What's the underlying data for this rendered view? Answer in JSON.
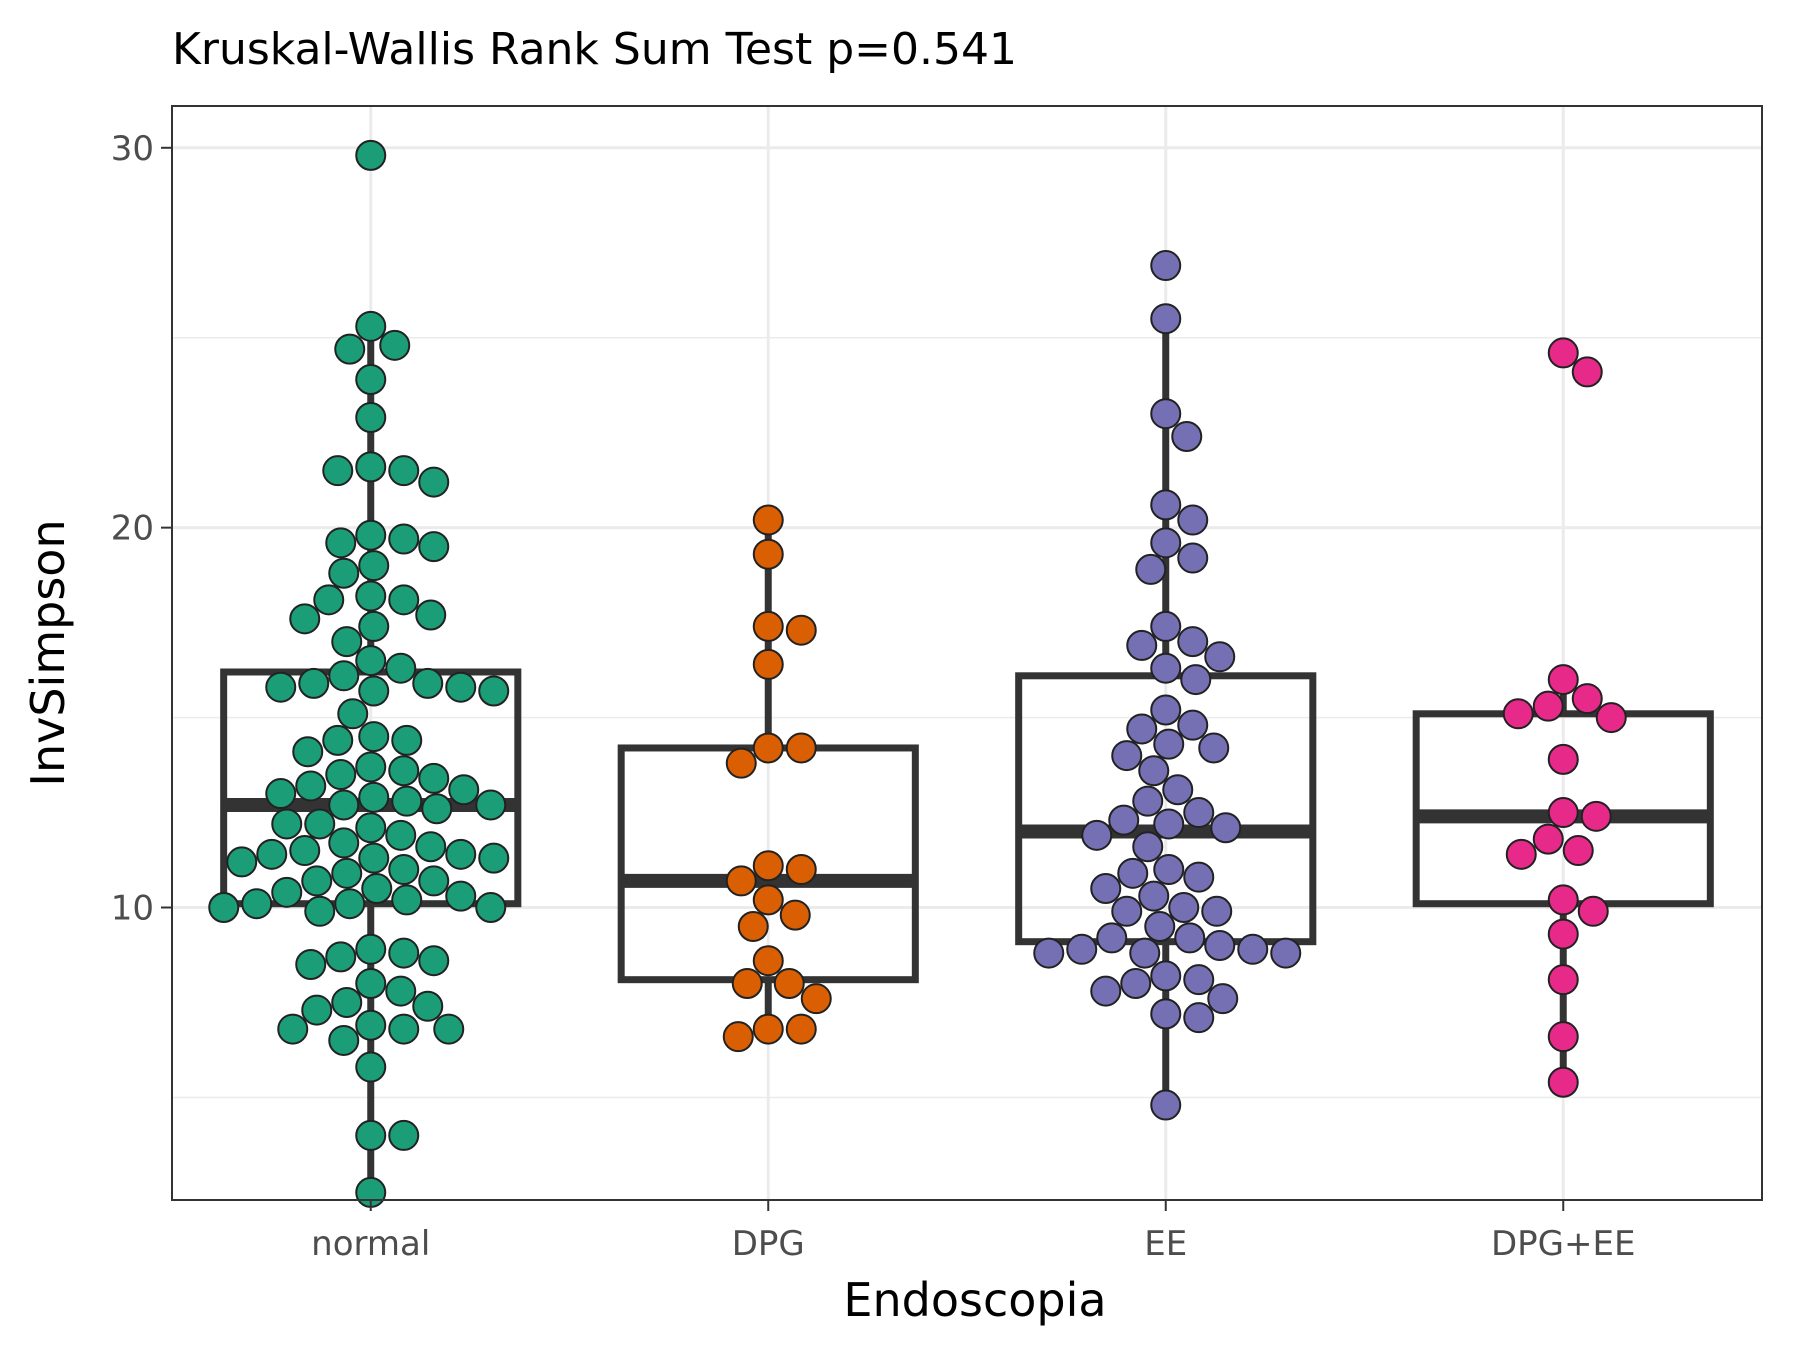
{
  "chart_data": {
    "type": "box",
    "title": "Kruskal-Wallis Rank Sum Test p=0.541",
    "xlabel": "Endoscopia",
    "ylabel": "InvSimpson",
    "categories": [
      "normal",
      "DPG",
      "EE",
      "DPG+EE"
    ],
    "ylim": [
      2.3,
      31.1
    ],
    "yticks": [
      10,
      20,
      30
    ],
    "grid": true,
    "legend": "none",
    "colors": {
      "normal": "#1b9e77",
      "DPG": "#d95f02",
      "EE": "#7570b3",
      "DPG+EE": "#e7298a",
      "box": "#333333"
    },
    "boxes": [
      {
        "group": "normal",
        "q1": 10.1,
        "median": 12.7,
        "q3": 16.2,
        "lower_whisker": 2.5,
        "upper_whisker": 25.3
      },
      {
        "group": "DPG",
        "q1": 8.1,
        "median": 10.7,
        "q3": 14.2,
        "lower_whisker": 6.6,
        "upper_whisker": 20.2
      },
      {
        "group": "EE",
        "q1": 9.1,
        "median": 12.0,
        "q3": 16.1,
        "lower_whisker": 4.8,
        "upper_whisker": 25.5
      },
      {
        "group": "DPG+EE",
        "q1": 10.1,
        "median": 12.4,
        "q3": 15.1,
        "lower_whisker": 5.4,
        "upper_whisker": 16.0
      }
    ],
    "points": [
      {
        "group": "normal",
        "values": [
          29.8,
          25.3,
          24.8,
          24.7,
          23.9,
          22.9,
          21.6,
          21.5,
          21.2,
          21.5,
          19.8,
          19.6,
          19.7,
          19.5,
          19.0,
          18.8,
          18.2,
          18.1,
          18.1,
          17.7,
          17.6,
          17.4,
          17.0,
          16.5,
          16.3,
          16.1,
          15.9,
          15.7,
          15.8,
          15.9,
          15.8,
          15.7,
          15.1,
          14.5,
          14.4,
          14.4,
          14.1,
          13.7,
          13.6,
          13.5,
          13.4,
          13.2,
          13.1,
          13.0,
          12.9,
          12.7,
          12.8,
          12.7,
          12.6,
          12.2,
          12.1,
          12.2,
          11.9,
          11.7,
          11.6,
          11.5,
          11.3,
          11.3,
          11.2,
          11.4,
          11.4,
          11.0,
          10.9,
          10.7,
          10.7,
          10.5,
          10.4,
          10.3,
          10.2,
          10.1,
          10.1,
          10.0,
          10.0,
          9.9,
          8.9,
          8.8,
          8.7,
          8.6,
          8.5,
          8.0,
          7.8,
          7.5,
          7.4,
          7.3,
          6.9,
          6.8,
          6.8,
          6.8,
          6.5,
          5.8,
          4.0,
          4.0,
          2.5
        ]
      },
      {
        "group": "DPG",
        "values": [
          20.2,
          19.3,
          17.4,
          17.3,
          16.4,
          14.2,
          14.2,
          13.8,
          11.1,
          11.0,
          10.7,
          10.2,
          9.8,
          9.5,
          8.6,
          8.0,
          8.0,
          7.6,
          6.8,
          6.8,
          6.6
        ]
      },
      {
        "group": "EE",
        "values": [
          26.9,
          25.5,
          23.0,
          22.4,
          20.6,
          20.2,
          19.6,
          19.2,
          18.9,
          17.4,
          17.0,
          16.9,
          16.6,
          16.3,
          16.0,
          15.2,
          14.8,
          14.7,
          14.3,
          14.2,
          14.0,
          13.6,
          13.1,
          12.8,
          12.5,
          12.3,
          12.2,
          12.1,
          11.9,
          11.6,
          11.0,
          10.9,
          10.8,
          10.5,
          10.3,
          10.0,
          9.9,
          9.9,
          9.5,
          9.2,
          9.2,
          9.0,
          8.9,
          8.9,
          8.8,
          8.8,
          8.8,
          8.2,
          8.1,
          8.0,
          7.8,
          7.6,
          7.2,
          7.1,
          4.8
        ]
      },
      {
        "group": "DPG+EE",
        "values": [
          24.6,
          24.1,
          16.0,
          15.5,
          15.3,
          15.1,
          15.0,
          13.9,
          12.5,
          12.4,
          11.8,
          11.5,
          11.4,
          10.2,
          9.9,
          9.3,
          8.1,
          6.6,
          5.4
        ]
      }
    ]
  }
}
